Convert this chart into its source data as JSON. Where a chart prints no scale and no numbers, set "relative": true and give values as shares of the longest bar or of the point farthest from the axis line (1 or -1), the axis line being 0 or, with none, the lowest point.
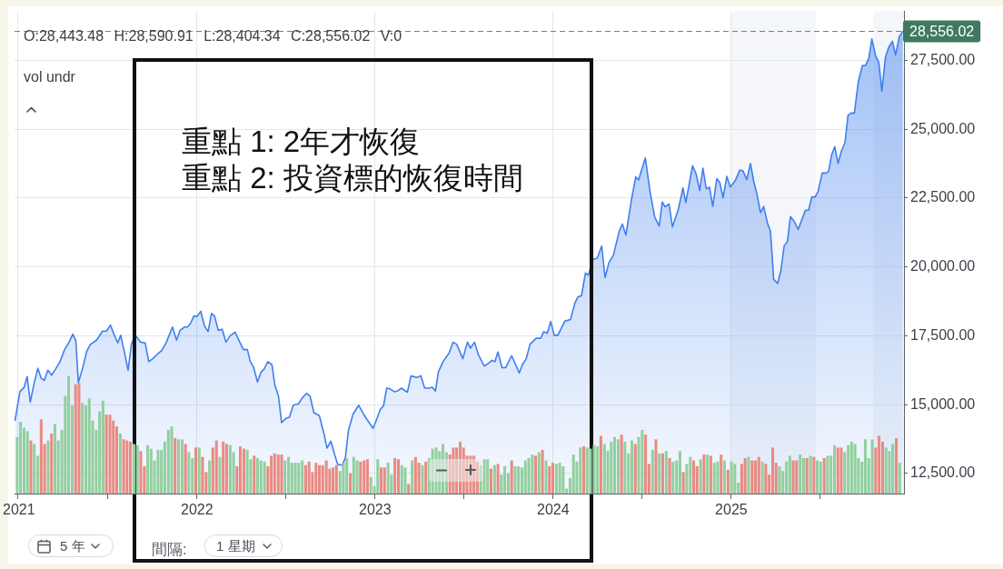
{
  "chart_data": [
    {
      "type": "area",
      "x": [
        2020.983,
        2021.01,
        2021.034,
        2021.051,
        2021.068,
        2021.091,
        2021.111,
        2021.129,
        2021.147,
        2021.167,
        2021.188,
        2021.21,
        2021.235,
        2021.261,
        2021.286,
        2021.307,
        2021.324,
        2021.338,
        2021.363,
        2021.385,
        2021.406,
        2021.44,
        2021.474,
        2021.496,
        2021.518,
        2021.539,
        2021.559,
        2021.576,
        2021.597,
        2021.617,
        2021.636,
        2021.658,
        2021.687,
        2021.713,
        2021.733,
        2021.756,
        2021.781,
        2021.807,
        2021.832,
        2021.866,
        2021.889,
        2021.909,
        2021.935,
        2021.951,
        2021.968,
        2021.986,
        2022.003,
        2022.025,
        2022.045,
        2022.066,
        2022.085,
        2022.102,
        2022.123,
        2022.145,
        2022.166,
        2022.192,
        2022.218,
        2022.24,
        2022.264,
        2022.286,
        2022.303,
        2022.321,
        2022.343,
        2022.363,
        2022.38,
        2022.401,
        2022.424,
        2022.441,
        2022.461,
        2022.478,
        2022.501,
        2022.522,
        2022.544,
        2022.573,
        2022.595,
        2022.618,
        2022.638,
        2022.659,
        2022.69,
        2022.716,
        2022.733,
        2022.755,
        2022.776,
        2022.793,
        2022.819,
        2022.836,
        2022.853,
        2022.879,
        2022.911,
        2022.943,
        2022.991,
        2023.008,
        2023.033,
        2023.05,
        2023.068,
        2023.085,
        2023.11,
        2023.127,
        2023.15,
        2023.184,
        2023.204,
        2023.239,
        2023.259,
        2023.281,
        2023.307,
        2023.324,
        2023.341,
        2023.358,
        2023.384,
        2023.418,
        2023.44,
        2023.461,
        2023.495,
        2023.521,
        2023.538,
        2023.561,
        2023.581,
        2023.615,
        2023.641,
        2023.658,
        2023.675,
        2023.692,
        2023.715,
        2023.735,
        2023.769,
        2023.812,
        2023.829,
        2023.851,
        2023.872,
        2023.906,
        2023.932,
        2023.949,
        2023.969,
        2023.988,
        2024.008,
        2024.028,
        2024.067,
        2024.099,
        2024.124,
        2024.141,
        2024.161,
        2024.183,
        2024.199,
        2024.224,
        2024.249,
        2024.274,
        2024.293,
        2024.315,
        2024.34,
        2024.373,
        2024.39,
        2024.41,
        2024.44,
        2024.465,
        2024.481,
        2024.519,
        2024.547,
        2024.572,
        2024.597,
        2024.614,
        2024.63,
        2024.652,
        2024.671,
        2024.705,
        2024.73,
        2024.746,
        2024.784,
        2024.804,
        2024.824,
        2024.842,
        2024.861,
        2024.879,
        2024.897,
        2024.92,
        2024.937,
        2024.955,
        2024.976,
        2024.996,
        2025.026,
        2025.049,
        2025.067,
        2025.088,
        2025.109,
        2025.127,
        2025.145,
        2025.165,
        2025.183,
        2025.204,
        2025.221,
        2025.239,
        2025.262,
        2025.28,
        2025.298,
        2025.316,
        2025.333,
        2025.355,
        2025.376,
        2025.417,
        2025.435,
        2025.453,
        2025.47,
        2025.488,
        2025.511,
        2025.532,
        2025.547,
        2025.564,
        2025.582,
        2025.6,
        2025.618,
        2025.639,
        2025.656,
        2025.674,
        2025.692,
        2025.714,
        2025.737,
        2025.754,
        2025.772,
        2025.79,
        2025.811,
        2025.829,
        2025.846,
        2025.866,
        2025.884,
        2025.905,
        2025.923,
        2025.944,
        2025.964
      ],
      "values": [
        14430,
        15470,
        15630,
        16020,
        15090,
        15800,
        16320,
        15960,
        15880,
        16250,
        16070,
        16290,
        16560,
        17000,
        17270,
        17560,
        17320,
        15800,
        16340,
        16940,
        17190,
        17340,
        17670,
        17670,
        17890,
        17540,
        17240,
        17520,
        16890,
        16250,
        17210,
        17520,
        17270,
        17240,
        16560,
        16670,
        16830,
        16970,
        17270,
        17820,
        17340,
        17700,
        17820,
        17820,
        17960,
        18220,
        18200,
        18390,
        17870,
        17650,
        18310,
        18220,
        17700,
        17740,
        17270,
        17520,
        17630,
        17320,
        17000,
        17000,
        16560,
        16360,
        15820,
        16180,
        16290,
        16560,
        16450,
        15690,
        15310,
        14350,
        14490,
        14540,
        14980,
        15030,
        15250,
        15410,
        15310,
        14710,
        14600,
        13940,
        13420,
        13670,
        13180,
        12830,
        12800,
        13070,
        14050,
        14650,
        14980,
        14600,
        14140,
        14400,
        14840,
        14950,
        15600,
        15580,
        15470,
        15490,
        15600,
        15450,
        16040,
        15990,
        16050,
        15600,
        15600,
        15630,
        15490,
        16180,
        16560,
        16870,
        17270,
        17190,
        16670,
        17270,
        17050,
        17270,
        16830,
        16400,
        16510,
        16610,
        16560,
        16910,
        16340,
        16340,
        16780,
        16150,
        16450,
        16670,
        17190,
        17410,
        17410,
        17650,
        17600,
        18020,
        17520,
        17520,
        18030,
        18090,
        18690,
        18910,
        18960,
        19780,
        19700,
        20270,
        20320,
        20760,
        19620,
        20160,
        20430,
        21310,
        21560,
        21160,
        22400,
        23270,
        23160,
        23960,
        22670,
        21800,
        21490,
        22360,
        22180,
        22290,
        21450,
        22120,
        22870,
        22340,
        23680,
        23380,
        22780,
        23590,
        22840,
        22900,
        22200,
        23210,
        23060,
        22510,
        23290,
        22900,
        23170,
        23520,
        23490,
        23170,
        23760,
        23110,
        22650,
        21970,
        22200,
        21590,
        21300,
        19550,
        19400,
        19900,
        20770,
        20920,
        21830,
        21650,
        21360,
        22060,
        22060,
        22550,
        22530,
        22740,
        23410,
        23410,
        23470,
        24070,
        24370,
        23760,
        24190,
        24520,
        25510,
        25590,
        25590,
        26740,
        27320,
        27320,
        27560,
        28280,
        27670,
        27420,
        26390,
        27620,
        27970,
        28200,
        27700,
        28370,
        28560
      ],
      "color": "#3f7fee",
      "xlim": [
        2020.98,
        2025.97
      ],
      "xticks": [
        2021,
        2022,
        2023,
        2024,
        2025
      ],
      "ylim": [
        11770,
        29280
      ],
      "yticks": [
        {
          "value": 12500,
          "label": "12,500.00"
        },
        {
          "value": 15000,
          "label": "15,000.00"
        },
        {
          "value": 17500,
          "label": "17,500.00"
        },
        {
          "value": 20000,
          "label": "20,000.00"
        },
        {
          "value": 22500,
          "label": "22,500.00"
        },
        {
          "value": 25000,
          "label": "25,000.00"
        },
        {
          "value": 27500,
          "label": "27,500.00"
        }
      ],
      "tick_labels": "y",
      "grid": true,
      "ref_lines": [
        {
          "axis": "y",
          "value": 28556.02,
          "label": "28,556.02",
          "color": "#3f7a60",
          "line_style": "dashed"
        }
      ],
      "bands": [
        {
          "axis": "x",
          "from": 2025,
          "to": 2025.477,
          "color": "#e9edf4"
        },
        {
          "axis": "x",
          "from": 2025.799,
          "to": 2025.97,
          "color": "#e9edf4"
        }
      ],
      "annotations": [
        "O:28,443.48 H:28,590.91 L:28,404.34 C:28,556.02 V:0",
        "vol undr",
        "重點 1: 2年才恢復",
        "重點 2: 投資標的恢復時間",
        "5 年",
        "間隔:",
        "1 星期"
      ]
    },
    {
      "type": "bar",
      "relative": true,
      "xlim": [
        2020.98,
        2025.97
      ],
      "xticks": [
        2021,
        2022,
        2023,
        2024,
        2025
      ],
      "x": [
        2020.99,
        2021.009,
        2021.029,
        2021.048,
        2021.067,
        2021.086,
        2021.106,
        2021.125,
        2021.144,
        2021.164,
        2021.183,
        2021.202,
        2021.221,
        2021.241,
        2021.26,
        2021.279,
        2021.299,
        2021.318,
        2021.337,
        2021.356,
        2021.376,
        2021.395,
        2021.414,
        2021.434,
        2021.453,
        2021.472,
        2021.491,
        2021.511,
        2021.53,
        2021.549,
        2021.569,
        2021.588,
        2021.607,
        2021.626,
        2021.646,
        2021.665,
        2021.684,
        2021.704,
        2021.723,
        2021.742,
        2021.761,
        2021.781,
        2021.8,
        2021.819,
        2021.839,
        2021.858,
        2021.877,
        2021.896,
        2021.916,
        2021.935,
        2021.954,
        2021.974,
        2021.993,
        2022.012,
        2022.031,
        2022.051,
        2022.07,
        2022.089,
        2022.109,
        2022.128,
        2022.147,
        2022.166,
        2022.186,
        2022.205,
        2022.224,
        2022.243,
        2022.263,
        2022.282,
        2022.301,
        2022.321,
        2022.34,
        2022.359,
        2022.379,
        2022.398,
        2022.417,
        2022.436,
        2022.456,
        2022.475,
        2022.494,
        2022.514,
        2022.533,
        2022.552,
        2022.571,
        2022.591,
        2022.61,
        2022.629,
        2022.648,
        2022.668,
        2022.687,
        2022.706,
        2022.726,
        2022.745,
        2022.764,
        2022.783,
        2022.803,
        2022.822,
        2022.841,
        2022.861,
        2022.88,
        2022.899,
        2022.918,
        2022.938,
        2022.957,
        2022.976,
        2022.996,
        2023.015,
        2023.034,
        2023.053,
        2023.073,
        2023.092,
        2023.111,
        2023.131,
        2023.15,
        2023.169,
        2023.188,
        2023.208,
        2023.227,
        2023.246,
        2023.266,
        2023.285,
        2023.304,
        2023.323,
        2023.343,
        2023.362,
        2023.381,
        2023.401,
        2023.42,
        2023.439,
        2023.458,
        2023.478,
        2023.497,
        2023.516,
        2023.536,
        2023.555,
        2023.574,
        2023.593,
        2023.613,
        2023.632,
        2023.651,
        2023.671,
        2023.69,
        2023.709,
        2023.728,
        2023.748,
        2023.767,
        2023.786,
        2023.805,
        2023.825,
        2023.844,
        2023.863,
        2023.883,
        2023.902,
        2023.921,
        2023.94,
        2023.96,
        2023.979,
        2023.998,
        2024.018,
        2024.037,
        2024.056,
        2024.075,
        2024.095,
        2024.114,
        2024.133,
        2024.153,
        2024.172,
        2024.191,
        2024.21,
        2024.23,
        2024.249,
        2024.268,
        2024.288,
        2024.307,
        2024.326,
        2024.345,
        2024.365,
        2024.384,
        2024.403,
        2024.423,
        2024.442,
        2024.461,
        2024.48,
        2024.5,
        2024.519,
        2024.538,
        2024.558,
        2024.577,
        2024.596,
        2024.615,
        2024.635,
        2024.654,
        2024.673,
        2024.693,
        2024.712,
        2024.731,
        2024.75,
        2024.77,
        2024.789,
        2024.808,
        2024.828,
        2024.847,
        2024.866,
        2024.885,
        2024.905,
        2024.924,
        2024.943,
        2024.962,
        2024.982,
        2025.001,
        2025.02,
        2025.04,
        2025.059,
        2025.078,
        2025.097,
        2025.117,
        2025.136,
        2025.155,
        2025.175,
        2025.194,
        2025.213,
        2025.233,
        2025.252,
        2025.271,
        2025.29,
        2025.31,
        2025.329,
        2025.348,
        2025.367,
        2025.387,
        2025.406,
        2025.425,
        2025.445,
        2025.464,
        2025.483,
        2025.502,
        2025.522,
        2025.541,
        2025.56,
        2025.58,
        2025.599,
        2025.618,
        2025.637,
        2025.657,
        2025.676,
        2025.695,
        2025.714,
        2025.734,
        2025.753,
        2025.772,
        2025.792,
        2025.811,
        2025.83,
        2025.85,
        2025.869,
        2025.888,
        2025.907,
        2025.927,
        2025.946
      ],
      "values": [
        0.48,
        0.61,
        0.56,
        0.53,
        0.45,
        0.42,
        0.32,
        0.63,
        0.42,
        0.45,
        0.51,
        0.59,
        0.45,
        0.54,
        0.83,
        1,
        0.75,
        0.93,
        0.94,
        0.77,
        0.75,
        0.81,
        0.62,
        0.54,
        0.7,
        0.79,
        0.67,
        0.67,
        0.62,
        0.57,
        0.51,
        0.46,
        0.45,
        0.44,
        0.42,
        0.41,
        0.36,
        0.23,
        0.41,
        0.38,
        0.28,
        0.37,
        0.37,
        0.44,
        0.54,
        0.57,
        0.47,
        0.46,
        0.46,
        0.42,
        0.35,
        0.3,
        0.39,
        0.39,
        0.31,
        0.18,
        0.28,
        0.39,
        0.45,
        0.31,
        0.44,
        0.42,
        0.41,
        0.35,
        0.23,
        0.4,
        0.38,
        0.37,
        0.29,
        0.32,
        0.3,
        0.28,
        0.27,
        0.23,
        0.32,
        0.34,
        0.33,
        0.33,
        0.28,
        0.31,
        0.26,
        0.26,
        0.26,
        0.28,
        0.24,
        0.27,
        0.18,
        0.26,
        0.24,
        0.24,
        0.28,
        0.21,
        0.22,
        0.24,
        0.19,
        0.26,
        0.3,
        0.17,
        0.31,
        0.28,
        0.27,
        0.28,
        0.29,
        0.14,
        0.06,
        0.29,
        0.22,
        0.22,
        0.26,
        0.16,
        0.3,
        0.29,
        0.24,
        0.22,
        0.08,
        0.28,
        0.31,
        0.26,
        0.24,
        0.27,
        0.3,
        0.38,
        0.39,
        0.36,
        0.42,
        0.35,
        0.33,
        0.39,
        0.39,
        0.44,
        0.39,
        0.32,
        0.32,
        0.32,
        0.27,
        0.24,
        0.29,
        0.29,
        0.21,
        0.24,
        0.25,
        0.16,
        0.23,
        0.17,
        0.28,
        0.23,
        0.23,
        0.22,
        0.28,
        0.3,
        0.33,
        0.32,
        0.35,
        0.37,
        0.28,
        0.23,
        0.26,
        0.25,
        0.26,
        0.23,
        0.04,
        0.13,
        0.33,
        0.27,
        0.39,
        0.4,
        0.39,
        0.38,
        0.41,
        0.4,
        0.49,
        0.42,
        0.36,
        0.44,
        0.48,
        0.46,
        0.5,
        0.44,
        0.34,
        0.45,
        0.42,
        0.48,
        0.54,
        0.5,
        0.25,
        0.37,
        0.46,
        0.34,
        0.34,
        0.36,
        0.3,
        0.27,
        0.28,
        0.36,
        0.18,
        0.25,
        0.31,
        0.28,
        0.23,
        0.29,
        0.33,
        0.33,
        0.32,
        0.26,
        0.27,
        0.33,
        0.28,
        0.2,
        0.27,
        0.25,
        0.09,
        0.25,
        0.3,
        0.31,
        0.28,
        0.28,
        0.31,
        0.27,
        0.25,
        0.16,
        0.39,
        0.26,
        0.23,
        0.19,
        0.27,
        0.32,
        0.28,
        0.28,
        0.33,
        0.3,
        0.3,
        0.32,
        0.31,
        0.28,
        0.27,
        0.3,
        0.32,
        0.32,
        0.41,
        0.39,
        0.39,
        0.35,
        0.41,
        0.44,
        0.42,
        0.3,
        0.27,
        0.46,
        0.3,
        0.46,
        0.39,
        0.49,
        0.44,
        0.39,
        0.36,
        0.42,
        0.47,
        0.26
      ],
      "colors": [
        "#93cf9f",
        "#93cf9f",
        "#93cf9f",
        "#93cf9f",
        "#e98b82",
        "#93cf9f",
        "#93cf9f",
        "#e98b82",
        "#e98b82",
        "#93cf9f",
        "#e98b82",
        "#93cf9f",
        "#93cf9f",
        "#93cf9f",
        "#93cf9f",
        "#93cf9f",
        "#93cf9f",
        "#e98b82",
        "#e98b82",
        "#93cf9f",
        "#93cf9f",
        "#93cf9f",
        "#93cf9f",
        "#93cf9f",
        "#93cf9f",
        "#93cf9f",
        "#e98b82",
        "#e98b82",
        "#e98b82",
        "#e98b82",
        "#93cf9f",
        "#e98b82",
        "#e98b82",
        "#e98b82",
        "#93cf9f",
        "#93cf9f",
        "#e98b82",
        "#e98b82",
        "#93cf9f",
        "#93cf9f",
        "#93cf9f",
        "#93cf9f",
        "#93cf9f",
        "#93cf9f",
        "#93cf9f",
        "#93cf9f",
        "#e98b82",
        "#93cf9f",
        "#93cf9f",
        "#e98b82",
        "#93cf9f",
        "#93cf9f",
        "#e98b82",
        "#93cf9f",
        "#e98b82",
        "#e98b82",
        "#93cf9f",
        "#e98b82",
        "#e98b82",
        "#93cf9f",
        "#e98b82",
        "#e98b82",
        "#93cf9f",
        "#93cf9f",
        "#e98b82",
        "#e98b82",
        "#e98b82",
        "#93cf9f",
        "#93cf9f",
        "#e98b82",
        "#93cf9f",
        "#93cf9f",
        "#93cf9f",
        "#e98b82",
        "#e98b82",
        "#e98b82",
        "#e98b82",
        "#e98b82",
        "#93cf9f",
        "#93cf9f",
        "#93cf9f",
        "#93cf9f",
        "#93cf9f",
        "#93cf9f",
        "#e98b82",
        "#e98b82",
        "#e98b82",
        "#e98b82",
        "#e98b82",
        "#e98b82",
        "#e98b82",
        "#e98b82",
        "#e98b82",
        "#e98b82",
        "#93cf9f",
        "#93cf9f",
        "#93cf9f",
        "#e98b82",
        "#93cf9f",
        "#93cf9f",
        "#e98b82",
        "#e98b82",
        "#e98b82",
        "#93cf9f",
        "#93cf9f",
        "#93cf9f",
        "#e98b82",
        "#e98b82",
        "#93cf9f",
        "#93cf9f",
        "#e98b82",
        "#e98b82",
        "#93cf9f",
        "#93cf9f",
        "#e98b82",
        "#93cf9f",
        "#e98b82",
        "#e98b82",
        "#93cf9f",
        "#e98b82",
        "#93cf9f",
        "#93cf9f",
        "#93cf9f",
        "#93cf9f",
        "#93cf9f",
        "#93cf9f",
        "#e98b82",
        "#e98b82",
        "#e98b82",
        "#e98b82",
        "#e98b82",
        "#e98b82",
        "#e98b82",
        "#e98b82",
        "#e98b82",
        "#93cf9f",
        "#93cf9f",
        "#93cf9f",
        "#e98b82",
        "#93cf9f",
        "#e98b82",
        "#93cf9f",
        "#93cf9f",
        "#93cf9f",
        "#e98b82",
        "#93cf9f",
        "#93cf9f",
        "#93cf9f",
        "#93cf9f",
        "#93cf9f",
        "#93cf9f",
        "#e98b82",
        "#93cf9f",
        "#e98b82",
        "#93cf9f",
        "#e98b82",
        "#e98b82",
        "#93cf9f",
        "#93cf9f",
        "#93cf9f",
        "#93cf9f",
        "#93cf9f",
        "#93cf9f",
        "#93cf9f",
        "#93cf9f",
        "#e98b82",
        "#93cf9f",
        "#93cf9f",
        "#93cf9f",
        "#93cf9f",
        "#e98b82",
        "#93cf9f",
        "#93cf9f",
        "#93cf9f",
        "#93cf9f",
        "#93cf9f",
        "#e98b82",
        "#93cf9f",
        "#93cf9f",
        "#93cf9f",
        "#e98b82",
        "#93cf9f",
        "#93cf9f",
        "#e98b82",
        "#e98b82",
        "#93cf9f",
        "#e98b82",
        "#93cf9f",
        "#e98b82",
        "#93cf9f",
        "#e98b82",
        "#93cf9f",
        "#93cf9f",
        "#93cf9f",
        "#e98b82",
        "#93cf9f",
        "#93cf9f",
        "#e98b82",
        "#e98b82",
        "#93cf9f",
        "#e98b82",
        "#93cf9f",
        "#e98b82",
        "#93cf9f",
        "#93cf9f",
        "#e98b82",
        "#93cf9f",
        "#e98b82",
        "#93cf9f",
        "#93cf9f",
        "#93cf9f",
        "#e98b82",
        "#e98b82",
        "#93cf9f",
        "#e98b82",
        "#e98b82",
        "#e98b82",
        "#93cf9f",
        "#e98b82",
        "#e98b82",
        "#e98b82",
        "#e98b82",
        "#93cf9f",
        "#93cf9f",
        "#93cf9f",
        "#93cf9f",
        "#e98b82",
        "#e98b82",
        "#93cf9f",
        "#93cf9f",
        "#e98b82",
        "#93cf9f",
        "#e98b82",
        "#93cf9f",
        "#93cf9f",
        "#e98b82",
        "#93cf9f",
        "#93cf9f",
        "#93cf9f",
        "#e98b82",
        "#e98b82",
        "#93cf9f",
        "#93cf9f",
        "#93cf9f",
        "#93cf9f",
        "#93cf9f",
        "#93cf9f",
        "#93cf9f",
        "#93cf9f",
        "#93cf9f",
        "#e98b82",
        "#e98b82",
        "#e98b82",
        "#93cf9f",
        "#93cf9f",
        "#93cf9f",
        "#e98b82",
        "#93cf9f"
      ]
    }
  ]
}
